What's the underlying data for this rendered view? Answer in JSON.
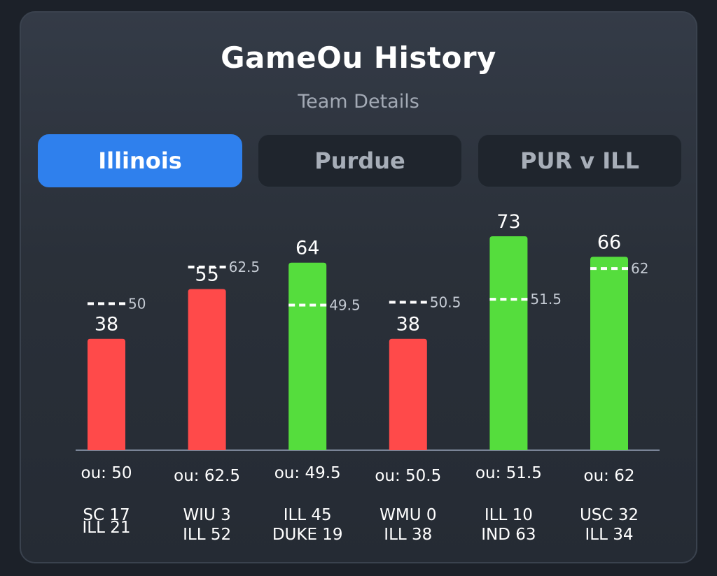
{
  "header": {
    "title": "GameOu History",
    "subtitle": "Team Details"
  },
  "tabs": [
    {
      "label": "Illinois",
      "active": true
    },
    {
      "label": "Purdue",
      "active": false
    },
    {
      "label": "PUR v ILL",
      "active": false
    }
  ],
  "colors": {
    "over": "#55dd3d",
    "under": "#ff4a4a",
    "accent": "#2f80ed",
    "line_marker": "#ffffff"
  },
  "chart_data": {
    "type": "bar",
    "categories": [
      "SC 17 / ILL 21",
      "WIU 3 / ILL 52",
      "ILL 45 / DUKE 19",
      "WMU 0 / ILL 38",
      "ILL 10 / IND 63",
      "USC 32 / ILL 34"
    ],
    "values": [
      38,
      55,
      64,
      38,
      73,
      66
    ],
    "ou_lines": [
      50,
      62.5,
      49.5,
      50.5,
      51.5,
      62
    ],
    "ou_labels": [
      "ou: 50",
      "ou: 62.5",
      "ou: 49.5",
      "ou: 50.5",
      "ou: 51.5",
      "ou: 62"
    ],
    "score_lines": [
      [
        "SC 17",
        "ILL 21"
      ],
      [
        "WIU 3",
        "ILL 52"
      ],
      [
        "ILL 45",
        "DUKE 19"
      ],
      [
        "WMU 0",
        "ILL 38"
      ],
      [
        "ILL 10",
        "IND 63"
      ],
      [
        "USC 32",
        "ILL 34"
      ]
    ],
    "ylim": [
      0,
      73
    ]
  }
}
